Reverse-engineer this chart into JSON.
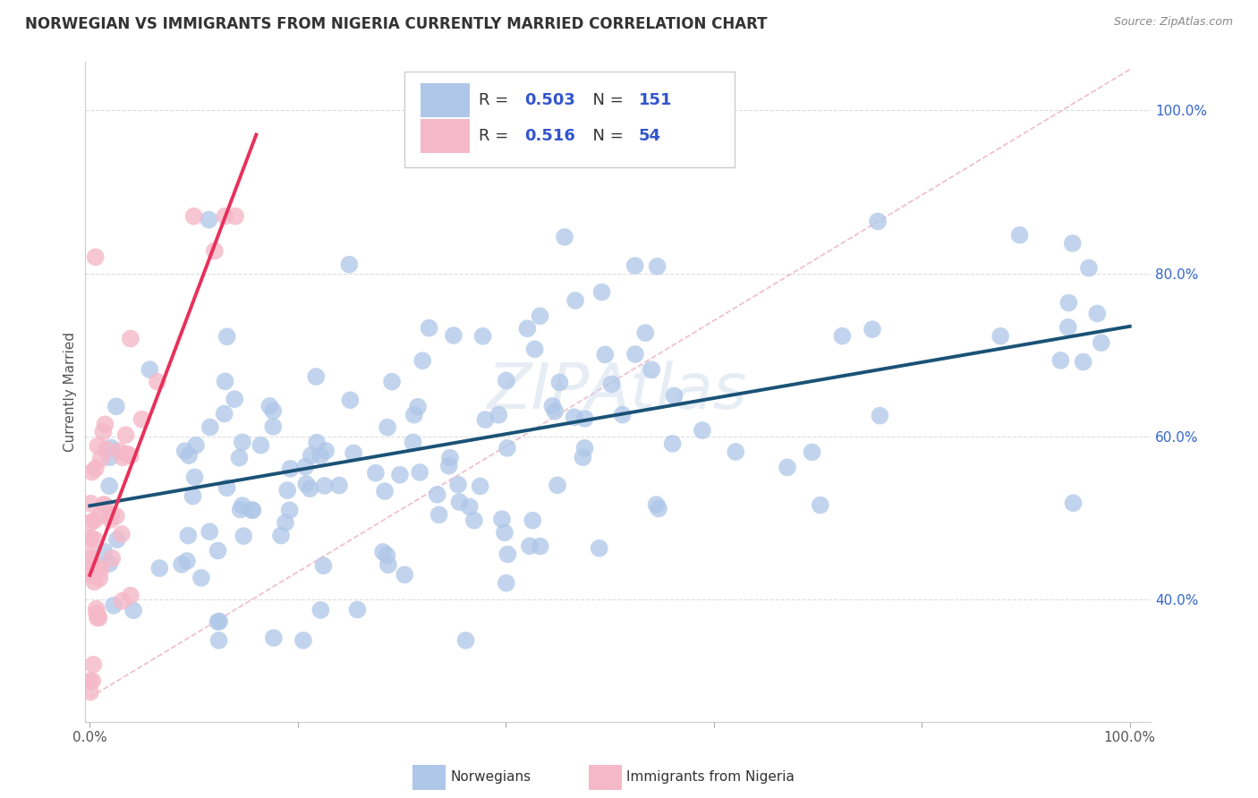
{
  "title": "NORWEGIAN VS IMMIGRANTS FROM NIGERIA CURRENTLY MARRIED CORRELATION CHART",
  "source": "Source: ZipAtlas.com",
  "ylabel": "Currently Married",
  "blue_color": "#aec6e8",
  "pink_color": "#f5b8c8",
  "blue_line_color": "#1a5276",
  "pink_line_color": "#e8305a",
  "dash_color": "#f5b8c8",
  "watermark": "ZIPAtlas",
  "ylim_low": 0.25,
  "ylim_high": 1.06,
  "xlim_low": -0.005,
  "xlim_high": 1.02,
  "blue_trend": [
    0.0,
    1.0,
    0.515,
    0.735
  ],
  "pink_trend": [
    0.0,
    0.16,
    0.43,
    0.97
  ],
  "dash_line": [
    0.0,
    1.0,
    0.28,
    1.05
  ],
  "yticks": [
    0.4,
    0.6,
    0.8,
    1.0
  ],
  "ytick_labels": [
    "40.0%",
    "60.0%",
    "80.0%",
    "100.0%"
  ],
  "legend_blue_r": "0.503",
  "legend_blue_n": "151",
  "legend_pink_r": "0.516",
  "legend_pink_n": "54"
}
